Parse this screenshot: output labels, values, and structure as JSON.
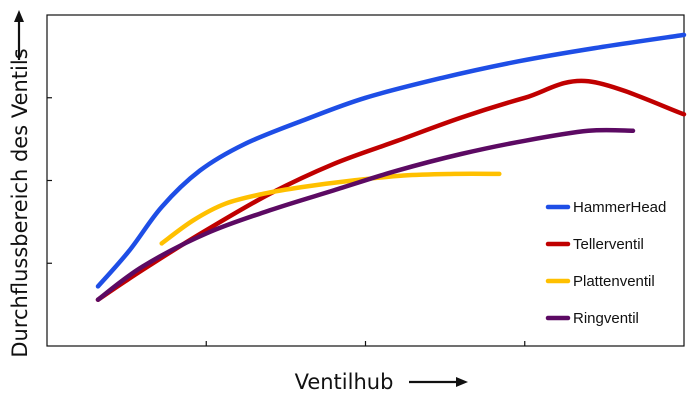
{
  "chart_data": {
    "type": "line",
    "xlabel": "Ventilhub",
    "ylabel": "Durchflussbereich des Ventils",
    "xlim": [
      0,
      10
    ],
    "ylim": [
      0,
      10
    ],
    "grid": false,
    "legend_position": "right",
    "series": [
      {
        "name": "HammerHead",
        "color": "#1e4ee6",
        "x": [
          0.8,
          1.3,
          1.8,
          2.4,
          3.1,
          4.0,
          5.0,
          6.2,
          7.4,
          8.6,
          10.0
        ],
        "y": [
          1.8,
          2.9,
          4.2,
          5.3,
          6.1,
          6.8,
          7.5,
          8.1,
          8.6,
          9.0,
          9.4
        ]
      },
      {
        "name": "Tellerventil",
        "color": "#c00000",
        "x": [
          0.8,
          1.5,
          2.5,
          3.5,
          4.5,
          5.5,
          6.5,
          7.5,
          8.5,
          10.0
        ],
        "y": [
          1.4,
          2.3,
          3.5,
          4.6,
          5.5,
          6.2,
          6.9,
          7.5,
          8.0,
          7.0
        ]
      },
      {
        "name": "Plattenventil",
        "color": "#ffc000",
        "x": [
          1.8,
          2.3,
          2.8,
          3.4,
          4.0,
          4.8,
          5.6,
          6.4,
          7.1
        ],
        "y": [
          3.1,
          3.8,
          4.3,
          4.6,
          4.8,
          5.0,
          5.15,
          5.2,
          5.2
        ]
      },
      {
        "name": "Ringventil",
        "color": "#5c0a63",
        "x": [
          0.8,
          1.5,
          2.5,
          3.5,
          4.5,
          5.5,
          6.5,
          7.5,
          8.5,
          9.2
        ],
        "y": [
          1.4,
          2.4,
          3.4,
          4.1,
          4.7,
          5.3,
          5.8,
          6.2,
          6.5,
          6.5
        ]
      }
    ]
  }
}
